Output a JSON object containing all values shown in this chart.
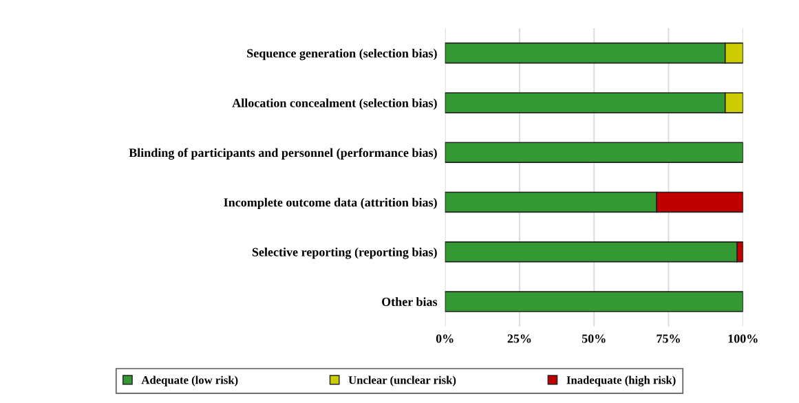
{
  "chart_data": {
    "type": "bar",
    "orientation": "horizontal",
    "stacked": true,
    "categories": [
      "Sequence generation (selection bias)",
      "Allocation concealment (selection bias)",
      "Blinding of participants and personnel (performance bias)",
      "Incomplete outcome data (attrition bias)",
      "Selective reporting (reporting bias)",
      "Other bias"
    ],
    "series": [
      {
        "name": "Adequate (low risk)",
        "color": "#339933",
        "values": [
          94,
          94,
          100,
          71,
          98,
          100
        ]
      },
      {
        "name": "Unclear (unclear risk)",
        "color": "#cccc00",
        "values": [
          6,
          6,
          0,
          0,
          0,
          0
        ]
      },
      {
        "name": "Inadequate (high risk)",
        "color": "#c00000",
        "values": [
          0,
          0,
          0,
          29,
          2,
          0
        ]
      }
    ],
    "xlim": [
      0,
      100
    ],
    "xticks": [
      {
        "value": 0,
        "label": "0%"
      },
      {
        "value": 25,
        "label": "25%"
      },
      {
        "value": 50,
        "label": "50%"
      },
      {
        "value": 75,
        "label": "75%"
      },
      {
        "value": 100,
        "label": "100%"
      }
    ],
    "grid": "x",
    "legend": "bottom"
  }
}
